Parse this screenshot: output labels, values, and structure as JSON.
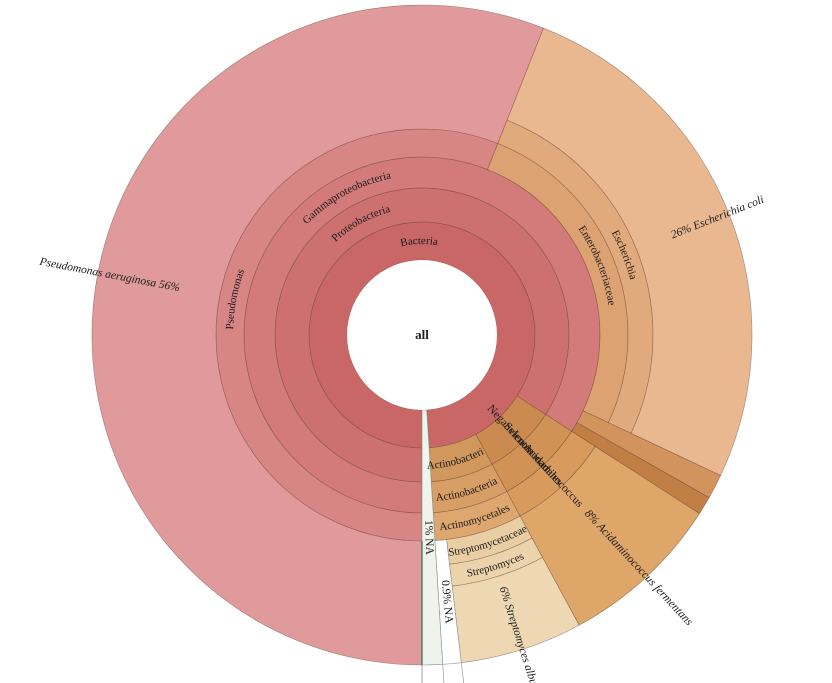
{
  "figure": {
    "kind": "krona-sunburst",
    "background": "#ffffff"
  },
  "chart_data": {
    "type": "sunburst",
    "center_label": "all",
    "units": "percent",
    "start_angle_deg": 180,
    "sweep": "clockwise",
    "leaf_summary": [
      {
        "name": "Pseudomonas aeruginosa",
        "pct": 56
      },
      {
        "name": "Escherichia coli",
        "pct": 26
      },
      {
        "name": "Acidaminococcus fermentans",
        "pct": 8
      },
      {
        "name": "Streptomyces albus",
        "pct": 6
      },
      {
        "name": "NA (under Actinomycetales)",
        "pct": 0.9
      },
      {
        "name": "NA (under Bacteria)",
        "pct": 1
      }
    ],
    "root": {
      "name": "all",
      "children": [
        {
          "name": "Bacteria",
          "pct": 99,
          "fill": "#c96767",
          "label": {
            "text": "Bacteria",
            "mode": "curved"
          },
          "children": [
            {
              "name": "Proteobacteria",
              "pct": 84.1,
              "fill": "#cd7170",
              "label": {
                "text": "Proteobacteria",
                "mode": "curved"
              },
              "children": [
                {
                  "name": "Gammaproteobacteria",
                  "pct": 84.1,
                  "fill": "#d27b7a",
                  "label": {
                    "text": "Gammaproteobacteria",
                    "mode": "curved"
                  },
                  "children": [
                    {
                      "name": "Pseudomonas",
                      "pct": 56,
                      "fill": "#d88685",
                      "label": {
                        "text": "Pseudomonas",
                        "mode": "curved"
                      },
                      "children": [
                        {
                          "name": "Pseudomonas aeruginosa",
                          "pct": 56,
                          "fill": "#e09a9b",
                          "label": {
                            "text": "Pseudomonas aeruginosa 56%",
                            "mode": "radial",
                            "place": "outer"
                          }
                        }
                      ]
                    },
                    {
                      "name": "Enterobacteriaceae",
                      "pct": 26,
                      "fill": "#dca271",
                      "label": {
                        "text": "Enterobacteriaceae",
                        "mode": "curved"
                      },
                      "children": [
                        {
                          "name": "Escherichia",
                          "pct": 26,
                          "fill": "#e1aa7c",
                          "label": {
                            "text": "Escherichia",
                            "mode": "curved"
                          },
                          "children": [
                            {
                              "name": "Escherichia coli",
                              "pct": 26,
                              "fill": "#e9b890",
                              "label": {
                                "text": "26% Escherichia coli",
                                "mode": "radial",
                                "place": "outer"
                              }
                            }
                          ]
                        }
                      ]
                    },
                    {
                      "name": "",
                      "pct": 1.2,
                      "fill": "#d2945c",
                      "label": {
                        "mode": "none"
                      }
                    },
                    {
                      "name": "",
                      "pct": 0.9,
                      "fill": "#c17f45",
                      "label": {
                        "mode": "none"
                      }
                    }
                  ]
                }
              ]
            },
            {
              "name": "Negativicutes",
              "pct": 8,
              "fill": "#cb8a4f",
              "label": {
                "text": "Negativicutes",
                "mode": "radial",
                "place": "ring"
              },
              "children": [
                {
                  "name": "Selenomonadales",
                  "pct": 8,
                  "fill": "#d19255",
                  "label": {
                    "text": "Selenomonadales",
                    "mode": "radial",
                    "place": "ring"
                  },
                  "children": [
                    {
                      "name": "Acidaminococcus",
                      "pct": 8,
                      "fill": "#d89b5d",
                      "label": {
                        "text": "Acidaminococcus",
                        "mode": "radial",
                        "place": "ring"
                      },
                      "children": [
                        {
                          "name": "Acidaminococcus fermentans",
                          "pct": 8,
                          "fill": "#dfa66a",
                          "label": {
                            "text": "8% Acidaminococcus fermentans",
                            "mode": "radial",
                            "place": "outer"
                          }
                        }
                      ]
                    }
                  ]
                }
              ]
            },
            {
              "name": "Actinobacteria",
              "pct": 6.9,
              "fill": "#d1985e",
              "label": {
                "text": "Actinobacteria",
                "mode": "curved"
              },
              "children": [
                {
                  "name": "Actinobacteria",
                  "pct": 6.9,
                  "fill": "#d79f66",
                  "label": {
                    "text": "Actinobacteria",
                    "mode": "curved"
                  },
                  "children": [
                    {
                      "name": "Actinomycetales",
                      "pct": 6.9,
                      "fill": "#dda76f",
                      "label": {
                        "text": "Actinomycetales",
                        "mode": "curved"
                      },
                      "children": [
                        {
                          "name": "Streptomycetaceae",
                          "pct": 6,
                          "fill": "#e9cda3",
                          "label": {
                            "text": "Streptomycetaceae",
                            "mode": "curved"
                          },
                          "children": [
                            {
                              "name": "Streptomyces",
                              "pct": 6,
                              "fill": "#ecd3ac",
                              "label": {
                                "text": "Streptomyces",
                                "mode": "curved"
                              },
                              "children": [
                                {
                                  "name": "Streptomyces albus",
                                  "pct": 6,
                                  "fill": "#eed8b3",
                                  "label": {
                                    "text": "6% Streptomyces albus",
                                    "mode": "radial",
                                    "place": "outer"
                                  }
                                }
                              ]
                            }
                          ]
                        },
                        {
                          "name": "NA",
                          "pct": 0.9,
                          "fill": "#ffffff",
                          "label": {
                            "text": "0.9% NA",
                            "mode": "radial",
                            "place": "mid"
                          }
                        }
                      ]
                    }
                  ]
                }
              ]
            }
          ]
        },
        {
          "name": "NA",
          "pct": 1,
          "fill": "#eef3ec",
          "label": {
            "text": "1% NA",
            "mode": "radial",
            "place": "mid"
          }
        }
      ]
    }
  },
  "decorations": {
    "divider_line_color": "#3e7f5e",
    "connector_line_color": "#8c8c8c",
    "wedge_border_color": "rgba(96,60,44,0.55)",
    "na_border_color": "#8a8f87",
    "label_color": "#1a1a1a"
  }
}
